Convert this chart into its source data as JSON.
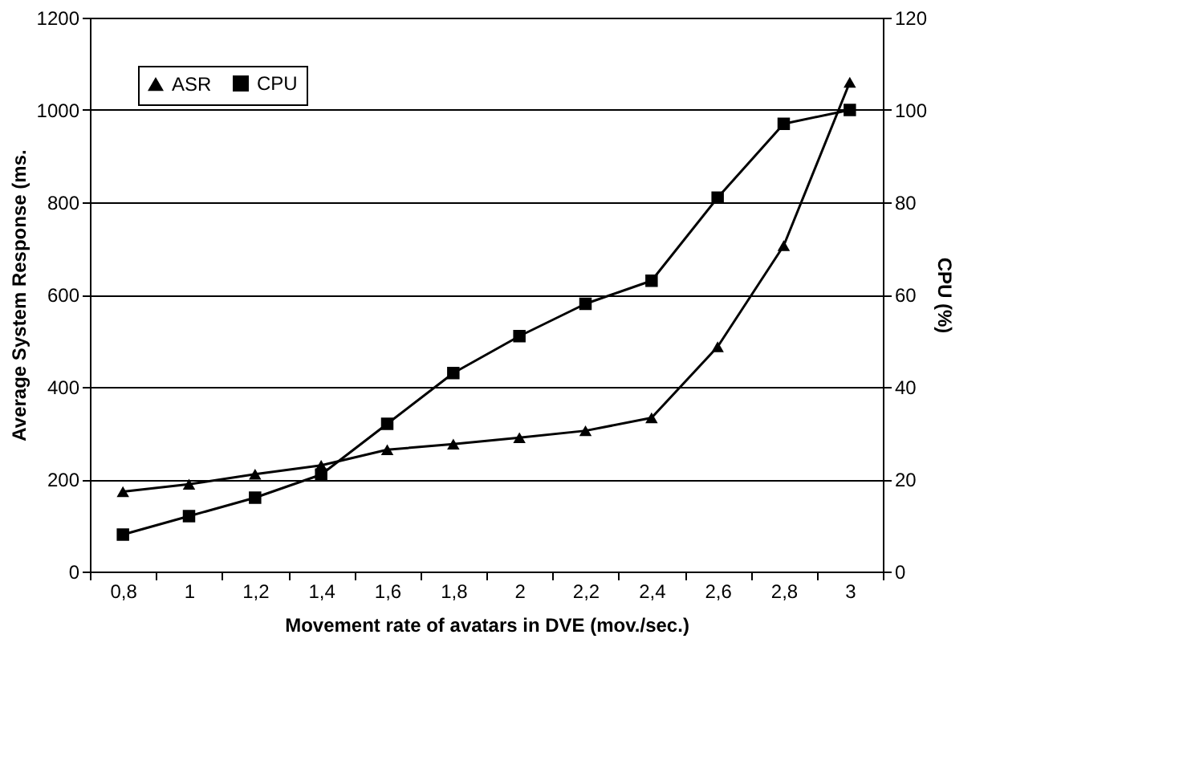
{
  "chart_data": {
    "type": "line",
    "xlabel": "Movement rate of avatars in DVE (mov./sec.)",
    "ylabel": "Average System Response (ms.",
    "y2label": "CPU (%)",
    "categories": [
      "0,8",
      "1",
      "1,2",
      "1,4",
      "1,6",
      "1,8",
      "2",
      "2,2",
      "2,4",
      "2,6",
      "2,8",
      "3"
    ],
    "series": [
      {
        "name": "ASR",
        "color": "#000000",
        "marker": "triangle",
        "values": [
          173,
          189,
          211,
          230,
          264,
          276,
          290,
          305,
          333,
          487,
          706,
          1060
        ]
      },
      {
        "name": "CPU",
        "color": "#000000",
        "marker": "square",
        "axis": "y2",
        "values": [
          8,
          12,
          16,
          21,
          32,
          43,
          51,
          58,
          63,
          81,
          97,
          100
        ]
      }
    ],
    "ylim": [
      0,
      1200
    ],
    "yticks": [
      0,
      200,
      400,
      600,
      800,
      1000,
      1200
    ],
    "y2lim": [
      0,
      120
    ],
    "y2ticks": [
      0,
      20,
      40,
      60,
      80,
      100,
      120
    ],
    "grid": "y",
    "legend": "top left",
    "line_style": "solid"
  }
}
